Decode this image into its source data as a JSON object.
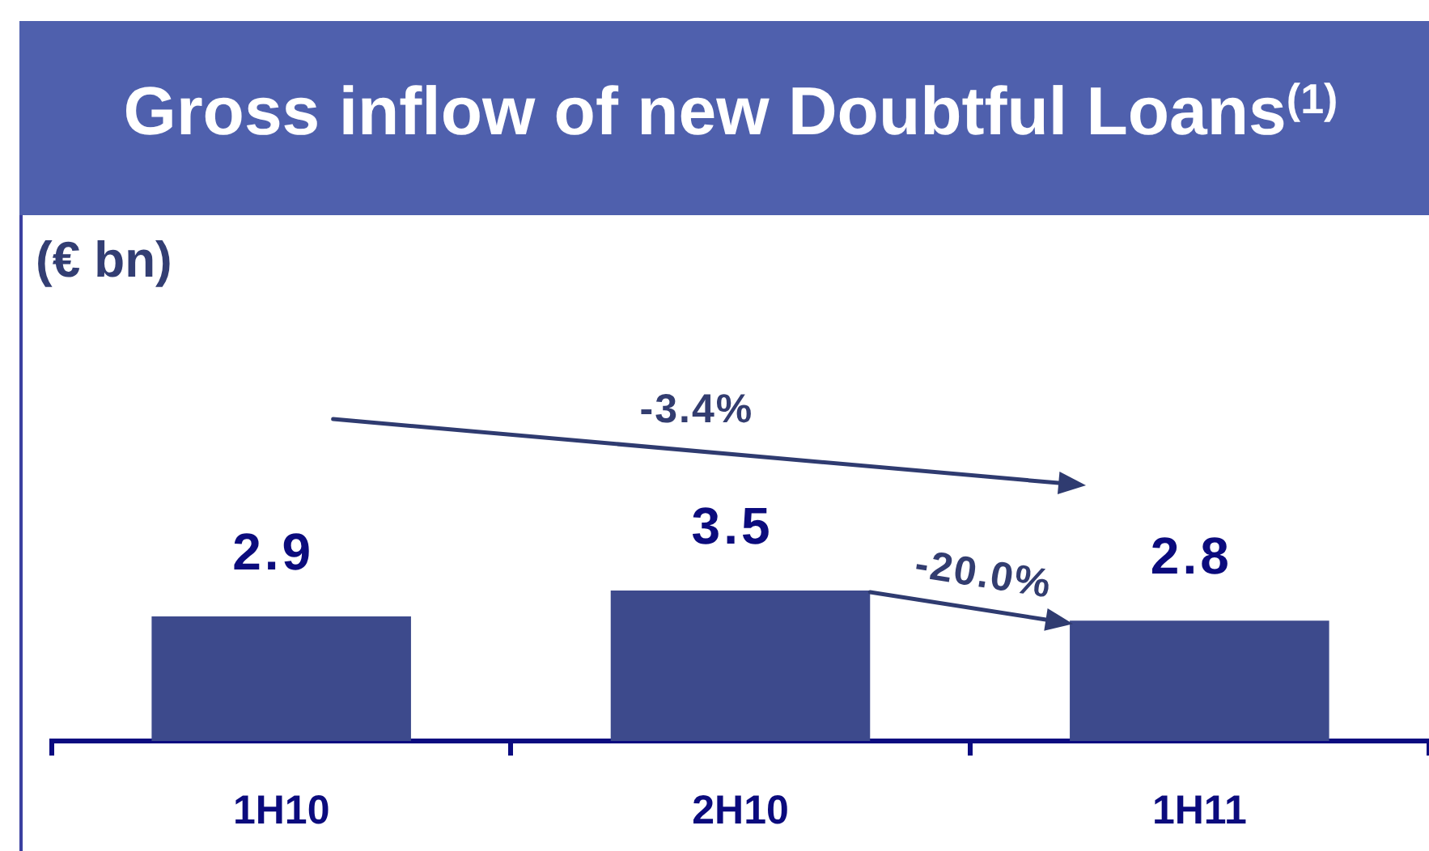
{
  "chart_data": {
    "type": "bar",
    "title": "Gross inflow of new Doubtful Loans$^{(1)}$",
    "categories": [
      "1H10",
      "2H10",
      "1H11"
    ],
    "values": [
      2.9,
      3.5,
      2.8
    ],
    "color": "#3d4a8c",
    "data_labels": true,
    "tick_labels": "x",
    "annotations": [
      "(€ bn)",
      "-3.4%",
      "-20.0%"
    ]
  }
}
